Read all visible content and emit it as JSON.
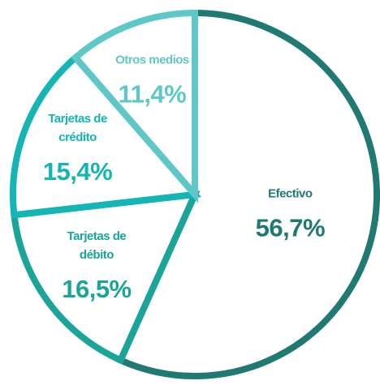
{
  "chart_data": {
    "type": "pie",
    "categories": [
      "Efectivo",
      "Tarjetas de débito",
      "Tarjetas de crédito",
      "Otros medios"
    ],
    "values": [
      56.7,
      16.5,
      15.4,
      11.4
    ],
    "value_labels": [
      "56,7%",
      "16,5%",
      "15,4%",
      "11,4%"
    ],
    "colors": [
      "#1e7a72",
      "#1aa59a",
      "#13b5b5",
      "#5ec8c8"
    ],
    "start_angle": 0,
    "direction": "clockwise"
  }
}
